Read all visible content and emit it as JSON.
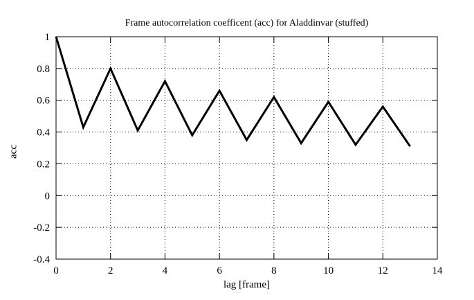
{
  "colors": {
    "background": "#ffffff",
    "line": "#000000",
    "grid": "#000000",
    "text": "#000000",
    "border": "#000000"
  },
  "chart_data": {
    "type": "line",
    "title": "Frame autocorrelation coefficent (acc) for Aladdinvar (stuffed)",
    "xlabel": "lag [frame]",
    "ylabel": "acc",
    "x": [
      0,
      1,
      2,
      3,
      4,
      5,
      6,
      7,
      8,
      9,
      10,
      11,
      12,
      13
    ],
    "y": [
      1.0,
      0.43,
      0.8,
      0.41,
      0.72,
      0.38,
      0.66,
      0.35,
      0.62,
      0.33,
      0.59,
      0.32,
      0.56,
      0.31
    ],
    "xlim": [
      0,
      14
    ],
    "ylim": [
      -0.4,
      1
    ],
    "xticks": [
      0,
      2,
      4,
      6,
      8,
      10,
      12,
      14
    ],
    "yticks": [
      1,
      0.8,
      0.6,
      0.4,
      0.2,
      0,
      -0.2,
      -0.4
    ],
    "grid": "dotted",
    "legend": "none",
    "line_color": "#000000",
    "line_width": 3
  }
}
